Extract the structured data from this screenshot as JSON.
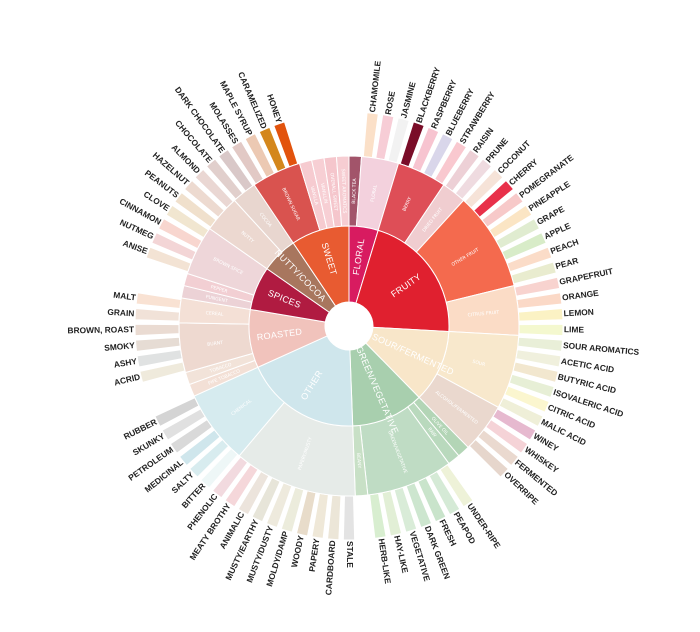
{
  "chart_data": {
    "type": "sunburst",
    "title": "",
    "categories": [
      {
        "name": "FLORAL",
        "color": "#d81b60",
        "children": [
          {
            "name": "BLACK TEA",
            "color": "#a2546a",
            "leaves": []
          },
          {
            "name": "FLORAL",
            "color": "#f3d1dd",
            "leaves": [
              {
                "name": "CHAMOMILE",
                "color": "#fbe0c8"
              },
              {
                "name": "ROSE",
                "color": "#f7cdd6"
              },
              {
                "name": "JASMINE",
                "color": "#f2f2f2"
              }
            ]
          }
        ]
      },
      {
        "name": "FRUITY",
        "color": "#e0202f",
        "children": [
          {
            "name": "BERRY",
            "color": "#de4e57",
            "leaves": [
              {
                "name": "BLACKBERRY",
                "color": "#7a0d28"
              },
              {
                "name": "RASPBERRY",
                "color": "#f7c4d0"
              },
              {
                "name": "BLUEBERRY",
                "color": "#d9d6ea"
              },
              {
                "name": "STRAWBERRY",
                "color": "#f9c8cf"
              }
            ]
          },
          {
            "name": "DRIED FRUIT",
            "color": "#f0cdd0",
            "leaves": [
              {
                "name": "RAISIN",
                "color": "#edd0d6"
              },
              {
                "name": "PRUNE",
                "color": "#efdbe0"
              }
            ]
          },
          {
            "name": "OTHER FRUIT",
            "color": "#f46a4e",
            "leaves": [
              {
                "name": "COCONUT",
                "color": "#f6e3d8"
              },
              {
                "name": "CHERRY",
                "color": "#e8304a"
              },
              {
                "name": "POMEGRANATE",
                "color": "#f7c9c9"
              },
              {
                "name": "PINEAPPLE",
                "color": "#fbe5c4"
              },
              {
                "name": "GRAPE",
                "color": "#e0ecd0"
              },
              {
                "name": "APPLE",
                "color": "#d8ecc8"
              },
              {
                "name": "PEACH",
                "color": "#fbdcc8"
              },
              {
                "name": "PEAR",
                "color": "#e9eccf"
              }
            ]
          },
          {
            "name": "CITRUS FRUIT",
            "color": "#fbdcc6",
            "leaves": [
              {
                "name": "GRAPEFRUIT",
                "color": "#f8d3cf"
              },
              {
                "name": "ORANGE",
                "color": "#fbd9c7"
              },
              {
                "name": "LEMON",
                "color": "#fbf2c4"
              },
              {
                "name": "LIME",
                "color": "#f4f8cf"
              }
            ]
          }
        ]
      },
      {
        "name": "SOUR/FERMENTED",
        "color": "#f8e6c9",
        "children": [
          {
            "name": "SOUR",
            "color": "#f8e8cc",
            "leaves": [
              {
                "name": "SOUR AROMATICS",
                "color": "#e9efd8"
              },
              {
                "name": "ACETIC ACID",
                "color": "#f0f0dd"
              },
              {
                "name": "BUTYRIC ACID",
                "color": "#f2e7cf"
              },
              {
                "name": "ISOVALERIC ACID",
                "color": "#e7efd6"
              },
              {
                "name": "CITRIC ACID",
                "color": "#fbf6cf"
              },
              {
                "name": "MALIC ACID",
                "color": "#efefd8"
              }
            ]
          },
          {
            "name": "ALCOHOL/FERMENTED",
            "color": "#ead8ce",
            "leaves": [
              {
                "name": "WINEY",
                "color": "#e6b9cf"
              },
              {
                "name": "WHISKEY",
                "color": "#f5d3d7"
              },
              {
                "name": "FERMENTED",
                "color": "#ead9cf"
              },
              {
                "name": "OVERRIPE",
                "color": "#e6d6cc"
              }
            ]
          }
        ]
      },
      {
        "name": "GREEN/VEGETATIVE",
        "color": "#a8cfae",
        "children": [
          {
            "name": "OLIVE OIL",
            "color": "#b3d5b6",
            "leaves": []
          },
          {
            "name": "RAW",
            "color": "#b9d9bd",
            "leaves": []
          },
          {
            "name": "GREEN/VEGETATIVE",
            "color": "#bfdcc4",
            "leaves": [
              {
                "name": "UNDER-RIPE",
                "color": "#eef2d8"
              },
              {
                "name": "PEAPOD",
                "color": "#d5ead6"
              },
              {
                "name": "FRESH",
                "color": "#c9e4cb"
              },
              {
                "name": "DARK GREEN",
                "color": "#cde6cf"
              },
              {
                "name": "VEGETATIVE",
                "color": "#d9ecd8"
              },
              {
                "name": "HAY-LIKE",
                "color": "#e2efd6"
              },
              {
                "name": "HERB-LIKE",
                "color": "#d8eed0"
              }
            ]
          },
          {
            "name": "BEANY",
            "color": "#c8e0c6",
            "leaves": []
          }
        ]
      },
      {
        "name": "OTHER",
        "color": "#cfe6ec",
        "children": [
          {
            "name": "PAPERY/MUSTY",
            "color": "#e6ebe8",
            "leaves": [
              {
                "name": "STALE",
                "color": "#e3e3e3"
              },
              {
                "name": "CARDBOARD",
                "color": "#ece6d8"
              },
              {
                "name": "PAPERY",
                "color": "#efe8d8"
              },
              {
                "name": "WOODY",
                "color": "#e8dcca"
              },
              {
                "name": "MOLDY/DAMP",
                "color": "#ececdc"
              },
              {
                "name": "MUSTY/DUSTY",
                "color": "#eeeadd"
              },
              {
                "name": "MUSTY/EARTHY",
                "color": "#e7e5d9"
              },
              {
                "name": "ANIMALIC",
                "color": "#ece4dc"
              },
              {
                "name": "MEATY BROTHY",
                "color": "#f5d7da"
              },
              {
                "name": "PHENOLIC",
                "color": "#f2dadf"
              }
            ]
          },
          {
            "name": "CHEMICAL",
            "color": "#d6ebef",
            "leaves": [
              {
                "name": "BITTER",
                "color": "#eef7f7"
              },
              {
                "name": "SALTY",
                "color": "#d8ecef"
              },
              {
                "name": "MEDICINAL",
                "color": "#cfe6ec"
              },
              {
                "name": "PETROLEUM",
                "color": "#d9d9d9"
              },
              {
                "name": "SKUNKY",
                "color": "#e0e0e0"
              },
              {
                "name": "RUBBER",
                "color": "#d4d4d4"
              }
            ]
          }
        ]
      },
      {
        "name": "ROASTED",
        "color": "#f1c3bc",
        "children": [
          {
            "name": "PIPE TOBACCO",
            "color": "#f3e0d6",
            "leaves": []
          },
          {
            "name": "TOBACCO",
            "color": "#f2e3d9",
            "leaves": []
          },
          {
            "name": "BURNT",
            "color": "#eed9d0",
            "leaves": [
              {
                "name": "ACRID",
                "color": "#efeadc"
              },
              {
                "name": "ASHY",
                "color": "#e0e2e2"
              },
              {
                "name": "SMOKY",
                "color": "#e6dcd4"
              },
              {
                "name": "BROWN, ROAST",
                "color": "#eadbd2"
              }
            ]
          },
          {
            "name": "CEREAL",
            "color": "#f4e0d6",
            "leaves": [
              {
                "name": "GRAIN",
                "color": "#f1e2d8"
              },
              {
                "name": "MALT",
                "color": "#f9e2d3"
              }
            ]
          }
        ]
      },
      {
        "name": "SPICES",
        "color": "#b01b41",
        "children": [
          {
            "name": "PUNGENT",
            "color": "#ecd2d6",
            "leaves": []
          },
          {
            "name": "PEPPER",
            "color": "#f2cfd3",
            "leaves": []
          },
          {
            "name": "BROWN SPICE",
            "color": "#eed6d9",
            "leaves": [
              {
                "name": "ANISE",
                "color": "#f3e3d4"
              },
              {
                "name": "NUTMEG",
                "color": "#f3d5d6"
              },
              {
                "name": "CINNAMON",
                "color": "#f8d6cf"
              },
              {
                "name": "CLOVE",
                "color": "#f1e6d0"
              }
            ]
          }
        ]
      },
      {
        "name": "NUTTY/COCOA",
        "color": "#a8765e",
        "children": [
          {
            "name": "NUTTY",
            "color": "#ecd8d0",
            "leaves": [
              {
                "name": "PEANUTS",
                "color": "#f0e0cc"
              },
              {
                "name": "HAZELNUT",
                "color": "#eddad0"
              },
              {
                "name": "ALMOND",
                "color": "#ead7d3"
              }
            ]
          },
          {
            "name": "COCOA",
            "color": "#e8d6cf",
            "leaves": [
              {
                "name": "CHOCOLATE",
                "color": "#e1cfcc"
              },
              {
                "name": "DARK CHOCOLATE",
                "color": "#d9c8c8"
              }
            ]
          }
        ]
      },
      {
        "name": "SWEET",
        "color": "#e85b31",
        "children": [
          {
            "name": "BROWN SUGAR",
            "color": "#d9534f",
            "leaves": [
              {
                "name": "MOLASSES",
                "color": "#e2c9c5"
              },
              {
                "name": "MAPLE SYRUP",
                "color": "#ecc9b3"
              },
              {
                "name": "CARAMELIZED",
                "color": "#d4871c"
              },
              {
                "name": "HONEY",
                "color": "#e2530d"
              }
            ]
          },
          {
            "name": "VANILLA",
            "color": "#f6cbd0",
            "leaves": []
          },
          {
            "name": "VANILLIN",
            "color": "#f7cfd4",
            "leaves": []
          },
          {
            "name": "OVERALL SWEET",
            "color": "#f5c6cc",
            "leaves": []
          },
          {
            "name": "SWEET AROMATICS",
            "color": "#f6cdd2",
            "leaves": []
          }
        ]
      }
    ]
  }
}
